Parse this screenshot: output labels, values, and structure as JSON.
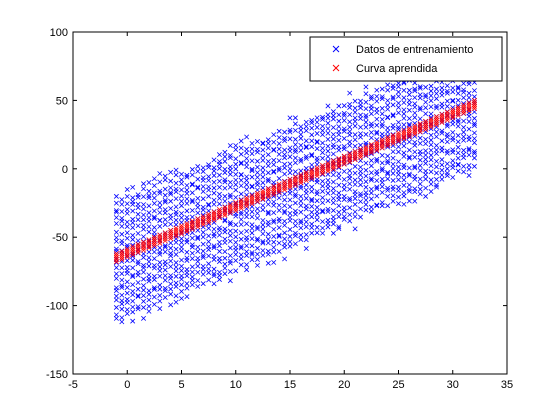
{
  "chart_data": {
    "type": "scatter",
    "xlim": [
      -5,
      35
    ],
    "ylim": [
      -150,
      100
    ],
    "xticks": [
      -5,
      0,
      5,
      10,
      15,
      20,
      25,
      30,
      35
    ],
    "yticks": [
      -150,
      -100,
      -50,
      0,
      50,
      100
    ],
    "grid": false,
    "legend_placement": "top-right",
    "series": [
      {
        "name": "Datos de entrenamiento",
        "color": "#0000ff",
        "marker": "x",
        "x_start": -1,
        "x_end": 32,
        "x_step": 0.5,
        "center_start": -65,
        "center_end": 47,
        "spread_low": 45,
        "spread_high": 40,
        "points_per_column": 22
      },
      {
        "name": "Curva aprendida",
        "color": "#ff0000",
        "marker": "x",
        "x_start": -1,
        "x_end": 32,
        "x_step": 0.5,
        "y_start": -65,
        "y_end": 47,
        "band": 3
      }
    ]
  }
}
